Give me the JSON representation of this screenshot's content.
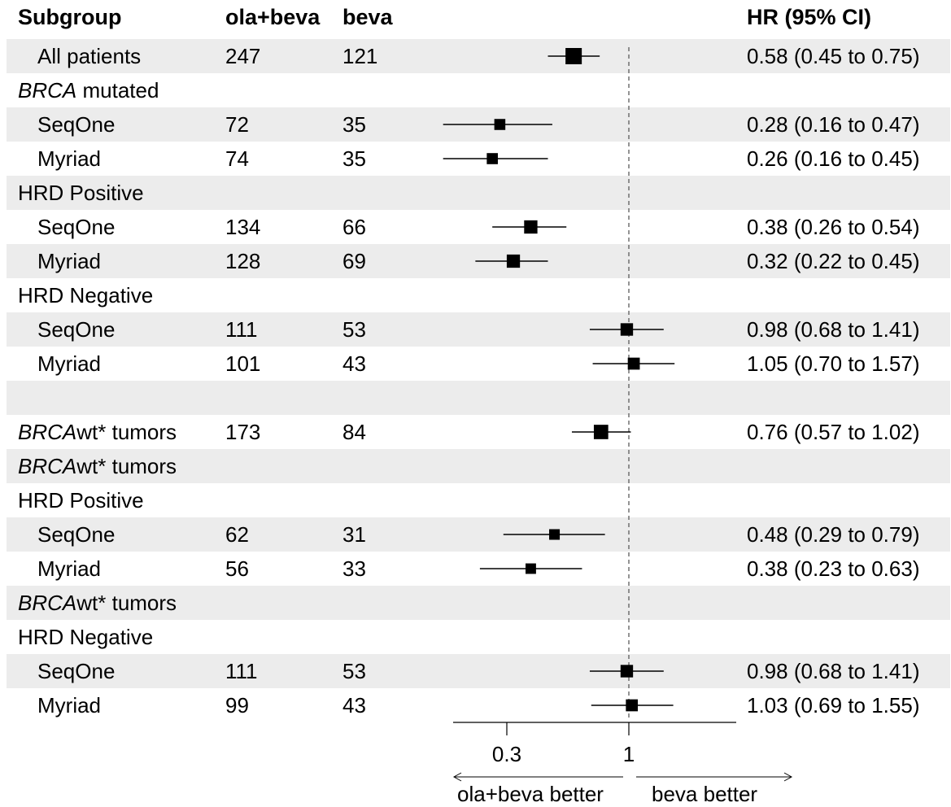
{
  "headers": {
    "subgroup": "Subgroup",
    "n1": "ola+beva",
    "n2": "beva",
    "hr": "HR (95% CI)"
  },
  "rows": [
    {
      "label": "All patients",
      "indent": true,
      "n1": "247",
      "n2": "121",
      "hr_text": "0.58 (0.45 to 0.75)"
    },
    {
      "label_italic": "BRCA",
      "label": " mutated",
      "indent": false
    },
    {
      "label": "SeqOne",
      "indent": true,
      "n1": "72",
      "n2": "35",
      "hr_text": "0.28 (0.16 to 0.47)"
    },
    {
      "label": "Myriad",
      "indent": true,
      "n1": "74",
      "n2": "35",
      "hr_text": "0.26 (0.16 to 0.45)"
    },
    {
      "label": "HRD Positive",
      "indent": false
    },
    {
      "label": "SeqOne",
      "indent": true,
      "n1": "134",
      "n2": "66",
      "hr_text": "0.38 (0.26 to 0.54)"
    },
    {
      "label": "Myriad",
      "indent": true,
      "n1": "128",
      "n2": "69",
      "hr_text": "0.32 (0.22 to 0.45)"
    },
    {
      "label": "HRD Negative",
      "indent": false
    },
    {
      "label": "SeqOne",
      "indent": true,
      "n1": "111",
      "n2": "53",
      "hr_text": "0.98 (0.68 to 1.41)"
    },
    {
      "label": "Myriad",
      "indent": true,
      "n1": "101",
      "n2": "43",
      "hr_text": "1.05 (0.70 to 1.57)"
    },
    {
      "label": "",
      "indent": false
    },
    {
      "label_italic": "BRCA",
      "label": "wt* tumors",
      "indent": false,
      "n1": "173",
      "n2": "84",
      "hr_text": "0.76 (0.57 to 1.02)"
    },
    {
      "label_italic": "BRCA",
      "label": "wt* tumors",
      "indent": false
    },
    {
      "label": "HRD Positive",
      "indent": false
    },
    {
      "label": "SeqOne",
      "indent": true,
      "n1": "62",
      "n2": "31",
      "hr_text": "0.48 (0.29 to 0.79)"
    },
    {
      "label": "Myriad",
      "indent": true,
      "n1": "56",
      "n2": "33",
      "hr_text": "0.38 (0.23 to 0.63)"
    },
    {
      "label_italic": "BRCA",
      "label": "wt* tumors",
      "indent": false
    },
    {
      "label": "HRD Negative",
      "indent": false
    },
    {
      "label": "SeqOne",
      "indent": true,
      "n1": "111",
      "n2": "53",
      "hr_text": "0.98 (0.68 to 1.41)"
    },
    {
      "label": "Myriad",
      "indent": true,
      "n1": "99",
      "n2": "43",
      "hr_text": "1.03 (0.69 to 1.55)"
    }
  ],
  "axis": {
    "ticks": [
      "0.3",
      "1"
    ],
    "left_note": "ola+beva better",
    "right_note": "beva better"
  },
  "chart_data": {
    "type": "forest",
    "x_scale": "log",
    "reference_line": 1,
    "xticks": [
      0.3,
      1
    ],
    "points": [
      {
        "row": 0,
        "hr": 0.58,
        "lo": 0.45,
        "hi": 0.75,
        "n_total": 368
      },
      {
        "row": 2,
        "hr": 0.28,
        "lo": 0.16,
        "hi": 0.47,
        "n_total": 107
      },
      {
        "row": 3,
        "hr": 0.26,
        "lo": 0.16,
        "hi": 0.45,
        "n_total": 109
      },
      {
        "row": 5,
        "hr": 0.38,
        "lo": 0.26,
        "hi": 0.54,
        "n_total": 200
      },
      {
        "row": 6,
        "hr": 0.32,
        "lo": 0.22,
        "hi": 0.45,
        "n_total": 197
      },
      {
        "row": 8,
        "hr": 0.98,
        "lo": 0.68,
        "hi": 1.41,
        "n_total": 164
      },
      {
        "row": 9,
        "hr": 1.05,
        "lo": 0.7,
        "hi": 1.57,
        "n_total": 144
      },
      {
        "row": 11,
        "hr": 0.76,
        "lo": 0.57,
        "hi": 1.02,
        "n_total": 257
      },
      {
        "row": 14,
        "hr": 0.48,
        "lo": 0.29,
        "hi": 0.79,
        "n_total": 93
      },
      {
        "row": 15,
        "hr": 0.38,
        "lo": 0.23,
        "hi": 0.63,
        "n_total": 89
      },
      {
        "row": 18,
        "hr": 0.98,
        "lo": 0.68,
        "hi": 1.41,
        "n_total": 164
      },
      {
        "row": 19,
        "hr": 1.03,
        "lo": 0.69,
        "hi": 1.55,
        "n_total": 142
      }
    ]
  }
}
